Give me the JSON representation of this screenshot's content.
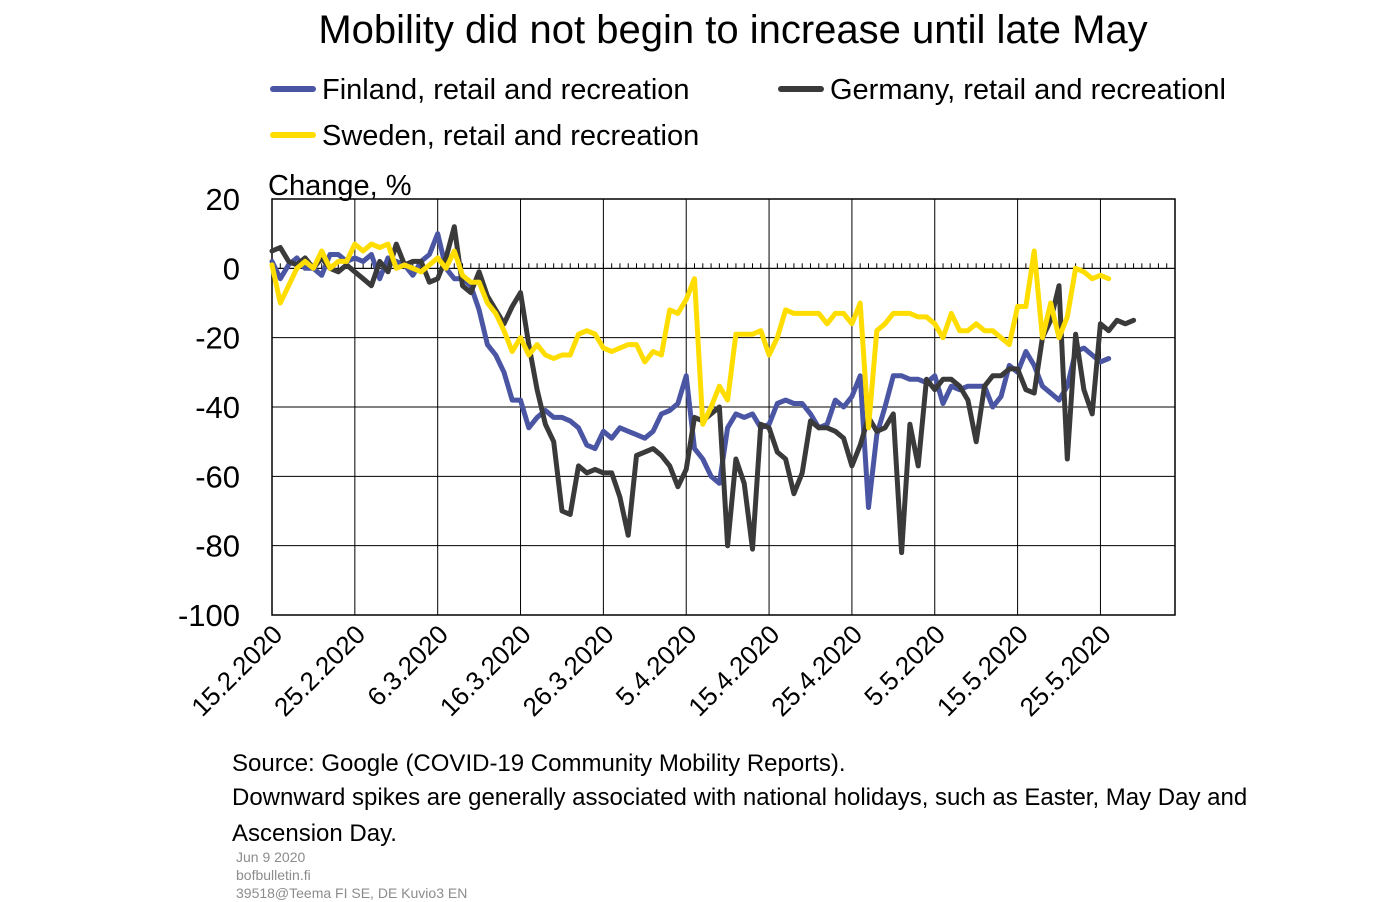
{
  "title": "Mobility did not begin to increase until late May",
  "unit_label": "Change, %",
  "legend": [
    {
      "label": "Finland, retail and recreation",
      "color": "#4a56a4"
    },
    {
      "label": "Germany, retail and recreationl",
      "color": "#3a3a3a"
    },
    {
      "label": "Sweden, retail and recreation",
      "color": "#ffdd00"
    }
  ],
  "notes": {
    "source": "Source: Google (COVID-19 Community Mobility Reports).",
    "line2": "Downward spikes are generally associated with national holidays, such as Easter, May Day and",
    "line3": "Ascension Day."
  },
  "meta": {
    "date": "Jun 9 2020",
    "site": "bofbulletin.fi",
    "code": "39518@Teema  FI  SE,  DE  Kuvio3  EN"
  },
  "chart_data": {
    "type": "line",
    "x_start": "15.2.2020",
    "x_tick_labels": [
      "15.2.2020",
      "25.2.2020",
      "6.3.2020",
      "16.3.2020",
      "26.3.2020",
      "5.4.2020",
      "15.4.2020",
      "25.4.2020",
      "5.5.2020",
      "15.5.2020",
      "25.5.2020"
    ],
    "ylim": [
      -100,
      20
    ],
    "y_ticks": [
      20,
      0,
      -20,
      -40,
      -60,
      -80,
      -100
    ],
    "grid": true,
    "series": [
      {
        "name": "Finland, retail and recreation",
        "color": "#4a56a4",
        "values": [
          2,
          -3,
          1,
          3,
          0,
          0,
          -2,
          4,
          4,
          2,
          3,
          2,
          4,
          -3,
          3,
          2,
          1,
          -2,
          2,
          4,
          10,
          0,
          -3,
          -3,
          -5,
          -12,
          -22,
          -25,
          -30,
          -38,
          -38,
          -46,
          -43,
          -41,
          -43,
          -43,
          -44,
          -46,
          -51,
          -52,
          -47,
          -49,
          -46,
          -47,
          -48,
          -49,
          -47,
          -42,
          -41,
          -39,
          -31,
          -52,
          -55,
          -60,
          -62,
          -46,
          -42,
          -43,
          -42,
          -46,
          -45,
          -39,
          -38,
          -39,
          -39,
          -42,
          -46,
          -45,
          -38,
          -40,
          -37,
          -31,
          -69,
          -48,
          -40,
          -31,
          -31,
          -32,
          -32,
          -33,
          -31,
          -39,
          -34,
          -35,
          -34,
          -34,
          -34,
          -40,
          -37,
          -28,
          -30,
          -24,
          -28,
          -34,
          -36,
          -38,
          -34,
          -24,
          -23,
          -25,
          -27,
          -26
        ]
      },
      {
        "name": "Germany, retail and recreationl",
        "color": "#3a3a3a",
        "values": [
          5,
          6,
          2,
          1,
          3,
          0,
          3,
          0,
          -1,
          1,
          -1,
          -3,
          -5,
          2,
          -1,
          7,
          1,
          2,
          2,
          -4,
          -3,
          3,
          12,
          -5,
          -7,
          -1,
          -8,
          -12,
          -16,
          -11,
          -7,
          -22,
          -35,
          -45,
          -50,
          -70,
          -71,
          -57,
          -59,
          -58,
          -59,
          -59,
          -66,
          -77,
          -54,
          -53,
          -52,
          -54,
          -57,
          -63,
          -58,
          -43,
          -44,
          -42,
          -40,
          -80,
          -55,
          -62,
          -81,
          -45,
          -46,
          -53,
          -55,
          -65,
          -59,
          -44,
          -46,
          -46,
          -47,
          -49,
          -57,
          -51,
          -43,
          -47,
          -46,
          -42,
          -82,
          -45,
          -57,
          -32,
          -35,
          -32,
          -32,
          -34,
          -38,
          -50,
          -34,
          -31,
          -31,
          -29,
          -29,
          -35,
          -36,
          -20,
          -15,
          -5,
          -55,
          -19,
          -35,
          -42,
          -16,
          -18,
          -15,
          -16,
          -15
        ]
      },
      {
        "name": "Sweden, retail and recreation",
        "color": "#ffdd00",
        "values": [
          1,
          -10,
          -5,
          0,
          2,
          0,
          5,
          0,
          2,
          2,
          7,
          5,
          7,
          6,
          7,
          0,
          1,
          0,
          -1,
          1,
          3,
          0,
          5,
          -2,
          -4,
          -4,
          -10,
          -13,
          -18,
          -24,
          -20,
          -25,
          -22,
          -25,
          -26,
          -25,
          -25,
          -19,
          -18,
          -19,
          -23,
          -24,
          -23,
          -22,
          -22,
          -27,
          -24,
          -25,
          -12,
          -13,
          -9,
          -3,
          -45,
          -40,
          -34,
          -38,
          -19,
          -19,
          -19,
          -18,
          -25,
          -20,
          -12,
          -13,
          -13,
          -13,
          -13,
          -16,
          -13,
          -13,
          -16,
          -10,
          -46,
          -18,
          -16,
          -13,
          -13,
          -13,
          -14,
          -14,
          -16,
          -20,
          -13,
          -18,
          -18,
          -16,
          -18,
          -18,
          -20,
          -22,
          -11,
          -11,
          5,
          -20,
          -10,
          -20,
          -14,
          0,
          -1,
          -3,
          -2,
          -3
        ]
      }
    ]
  }
}
